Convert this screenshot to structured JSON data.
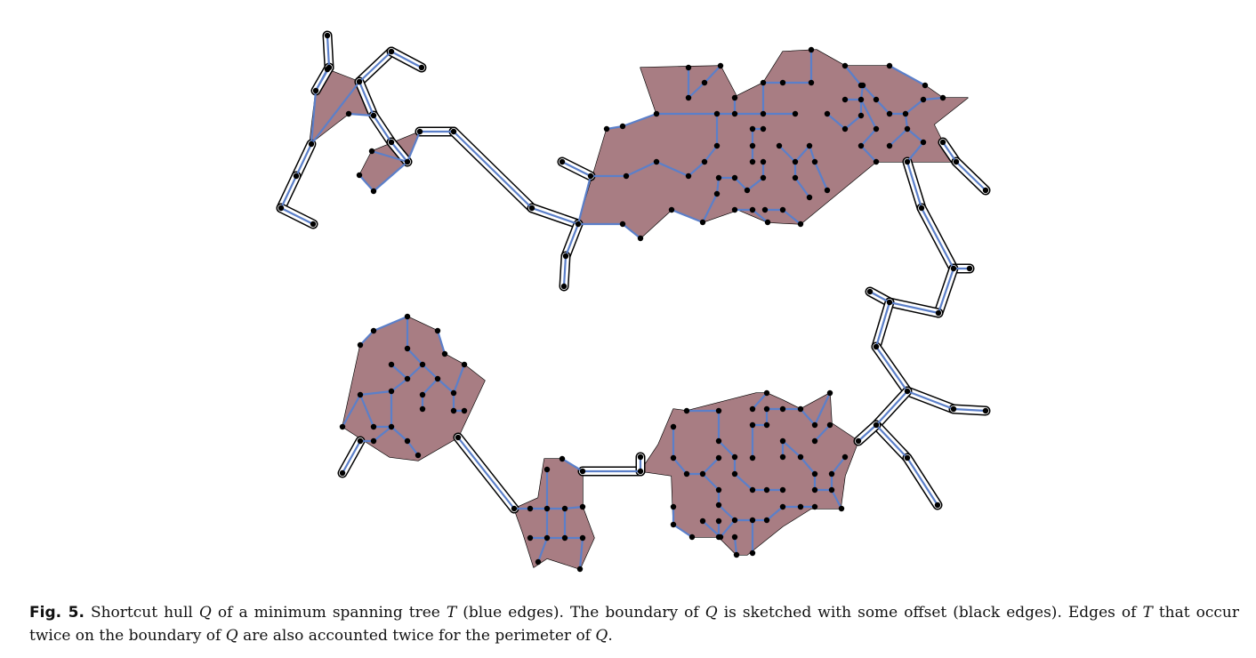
{
  "figure": {
    "colors": {
      "hull_fill": "#a87d83",
      "tree_edges": "#5b7fc9",
      "boundary": "#000000",
      "nodes": "#000000"
    }
  },
  "caption": {
    "label": "Fig. 5.",
    "t1": " Shortcut hull ",
    "m1": "Q",
    "t2": " of a minimum spanning tree ",
    "m2": "T",
    "t3": " (blue edges). The boundary of ",
    "m3": "Q",
    "t4": " is sketched with some offset (black edges). Edges of ",
    "m4": "T",
    "t5": " that occur twice on the boundary of ",
    "m5": "Q",
    "t6": " are also accounted twice for the perimeter of ",
    "m6": "Q",
    "t7": "."
  }
}
